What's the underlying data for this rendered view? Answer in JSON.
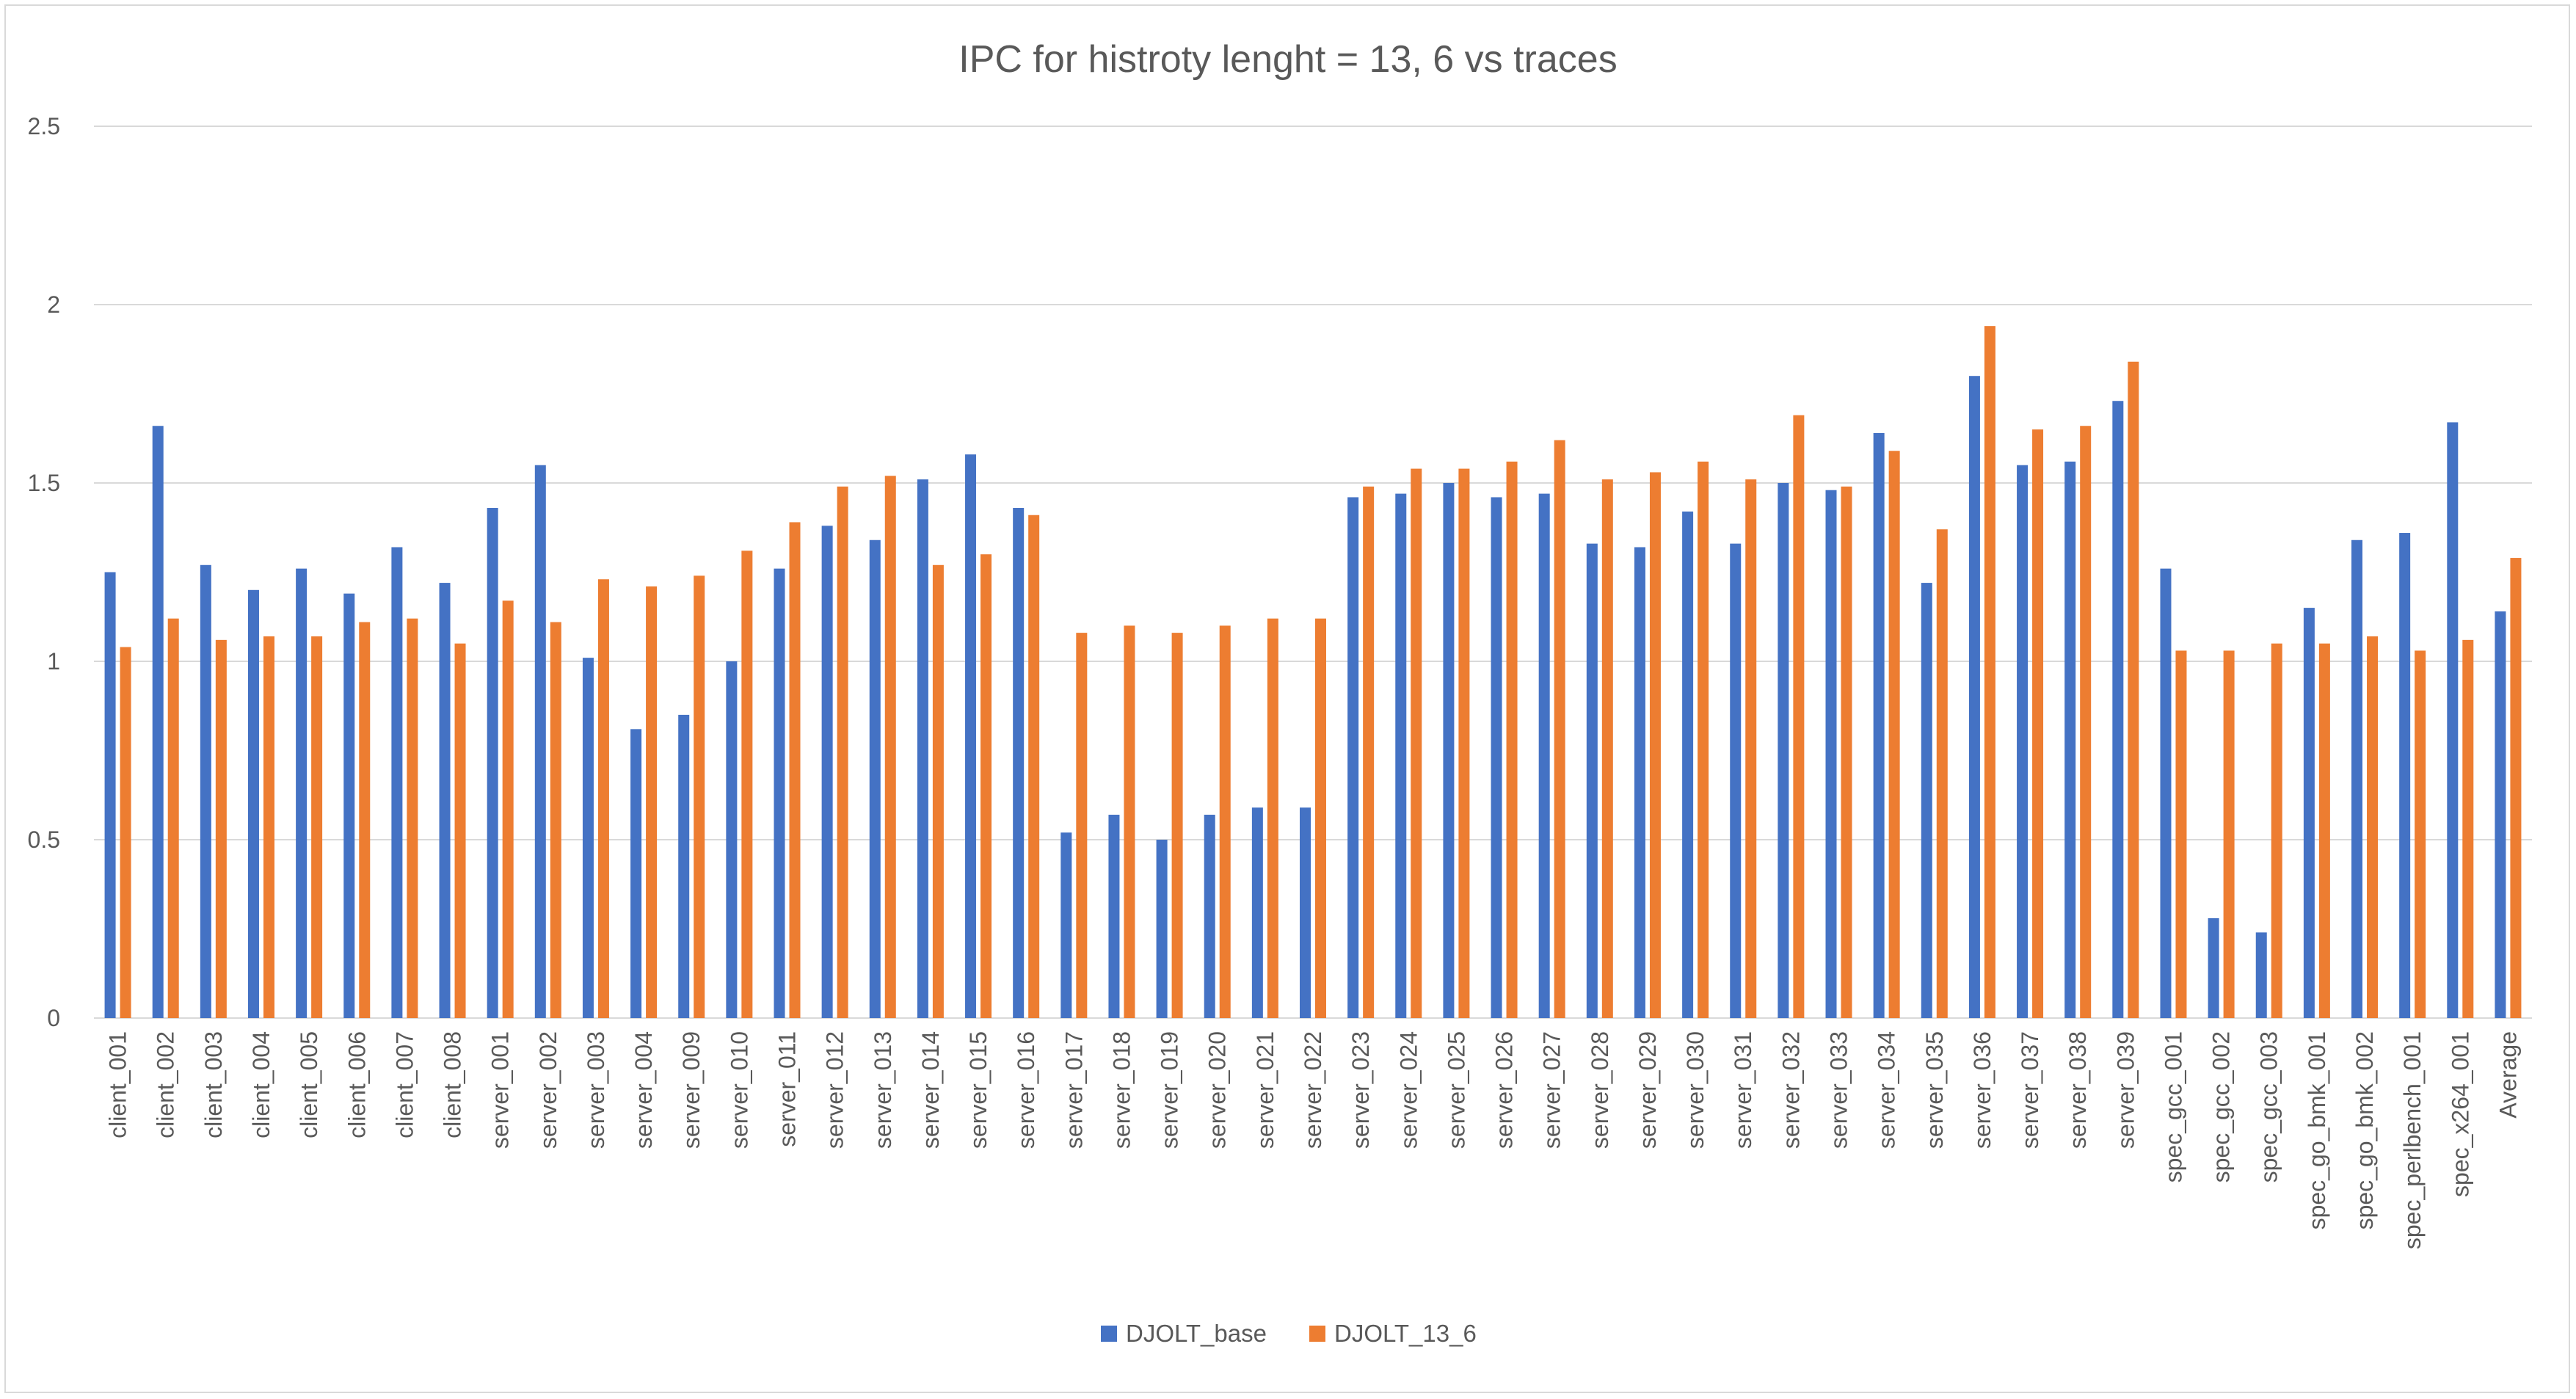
{
  "chart_data": {
    "type": "bar",
    "title": "IPC for histroty lenght = 13, 6 vs traces",
    "xlabel": "",
    "ylabel": "",
    "ylim": [
      0,
      2.5
    ],
    "yticks": [
      "0",
      "0.5",
      "1",
      "1.5",
      "2",
      "2.5"
    ],
    "grid": true,
    "legend_position": "bottom",
    "categories": [
      "client_001",
      "client_002",
      "client_003",
      "client_004",
      "client_005",
      "client_006",
      "client_007",
      "client_008",
      "server_001",
      "server_002",
      "server_003",
      "server_004",
      "server_009",
      "server_010",
      "server_011",
      "server_012",
      "server_013",
      "server_014",
      "server_015",
      "server_016",
      "server_017",
      "server_018",
      "server_019",
      "server_020",
      "server_021",
      "server_022",
      "server_023",
      "server_024",
      "server_025",
      "server_026",
      "server_027",
      "server_028",
      "server_029",
      "server_030",
      "server_031",
      "server_032",
      "server_033",
      "server_034",
      "server_035",
      "server_036",
      "server_037",
      "server_038",
      "server_039",
      "spec_gcc_001",
      "spec_gcc_002",
      "spec_gcc_003",
      "spec_go_bmk_001",
      "spec_go_bmk_002",
      "spec_perlbench_001",
      "spec_x264_001",
      "Average"
    ],
    "series": [
      {
        "name": "DJOLT_base",
        "color": "#4472C4",
        "values": [
          1.25,
          1.66,
          1.27,
          1.2,
          1.26,
          1.19,
          1.32,
          1.22,
          1.43,
          1.55,
          1.01,
          0.81,
          0.85,
          1.0,
          1.26,
          1.38,
          1.34,
          1.51,
          1.58,
          1.43,
          0.52,
          0.57,
          0.5,
          0.57,
          0.59,
          0.59,
          1.46,
          1.47,
          1.5,
          1.46,
          1.47,
          1.33,
          1.32,
          1.42,
          1.33,
          1.5,
          1.48,
          1.64,
          1.22,
          1.8,
          1.55,
          1.56,
          1.73,
          1.26,
          0.28,
          0.24,
          1.15,
          1.34,
          1.36,
          1.67,
          1.14
        ]
      },
      {
        "name": "DJOLT_13_6",
        "color": "#ED7D31",
        "values": [
          1.04,
          1.12,
          1.06,
          1.07,
          1.07,
          1.11,
          1.12,
          1.05,
          1.17,
          1.11,
          1.23,
          1.21,
          1.24,
          1.31,
          1.39,
          1.49,
          1.52,
          1.27,
          1.3,
          1.41,
          1.08,
          1.1,
          1.08,
          1.1,
          1.12,
          1.12,
          1.49,
          1.54,
          1.54,
          1.56,
          1.62,
          1.51,
          1.53,
          1.56,
          1.51,
          1.69,
          1.49,
          1.59,
          1.37,
          1.94,
          1.65,
          1.66,
          1.84,
          1.03,
          1.03,
          1.05,
          1.05,
          1.07,
          1.03,
          1.06,
          1.29
        ]
      }
    ]
  }
}
